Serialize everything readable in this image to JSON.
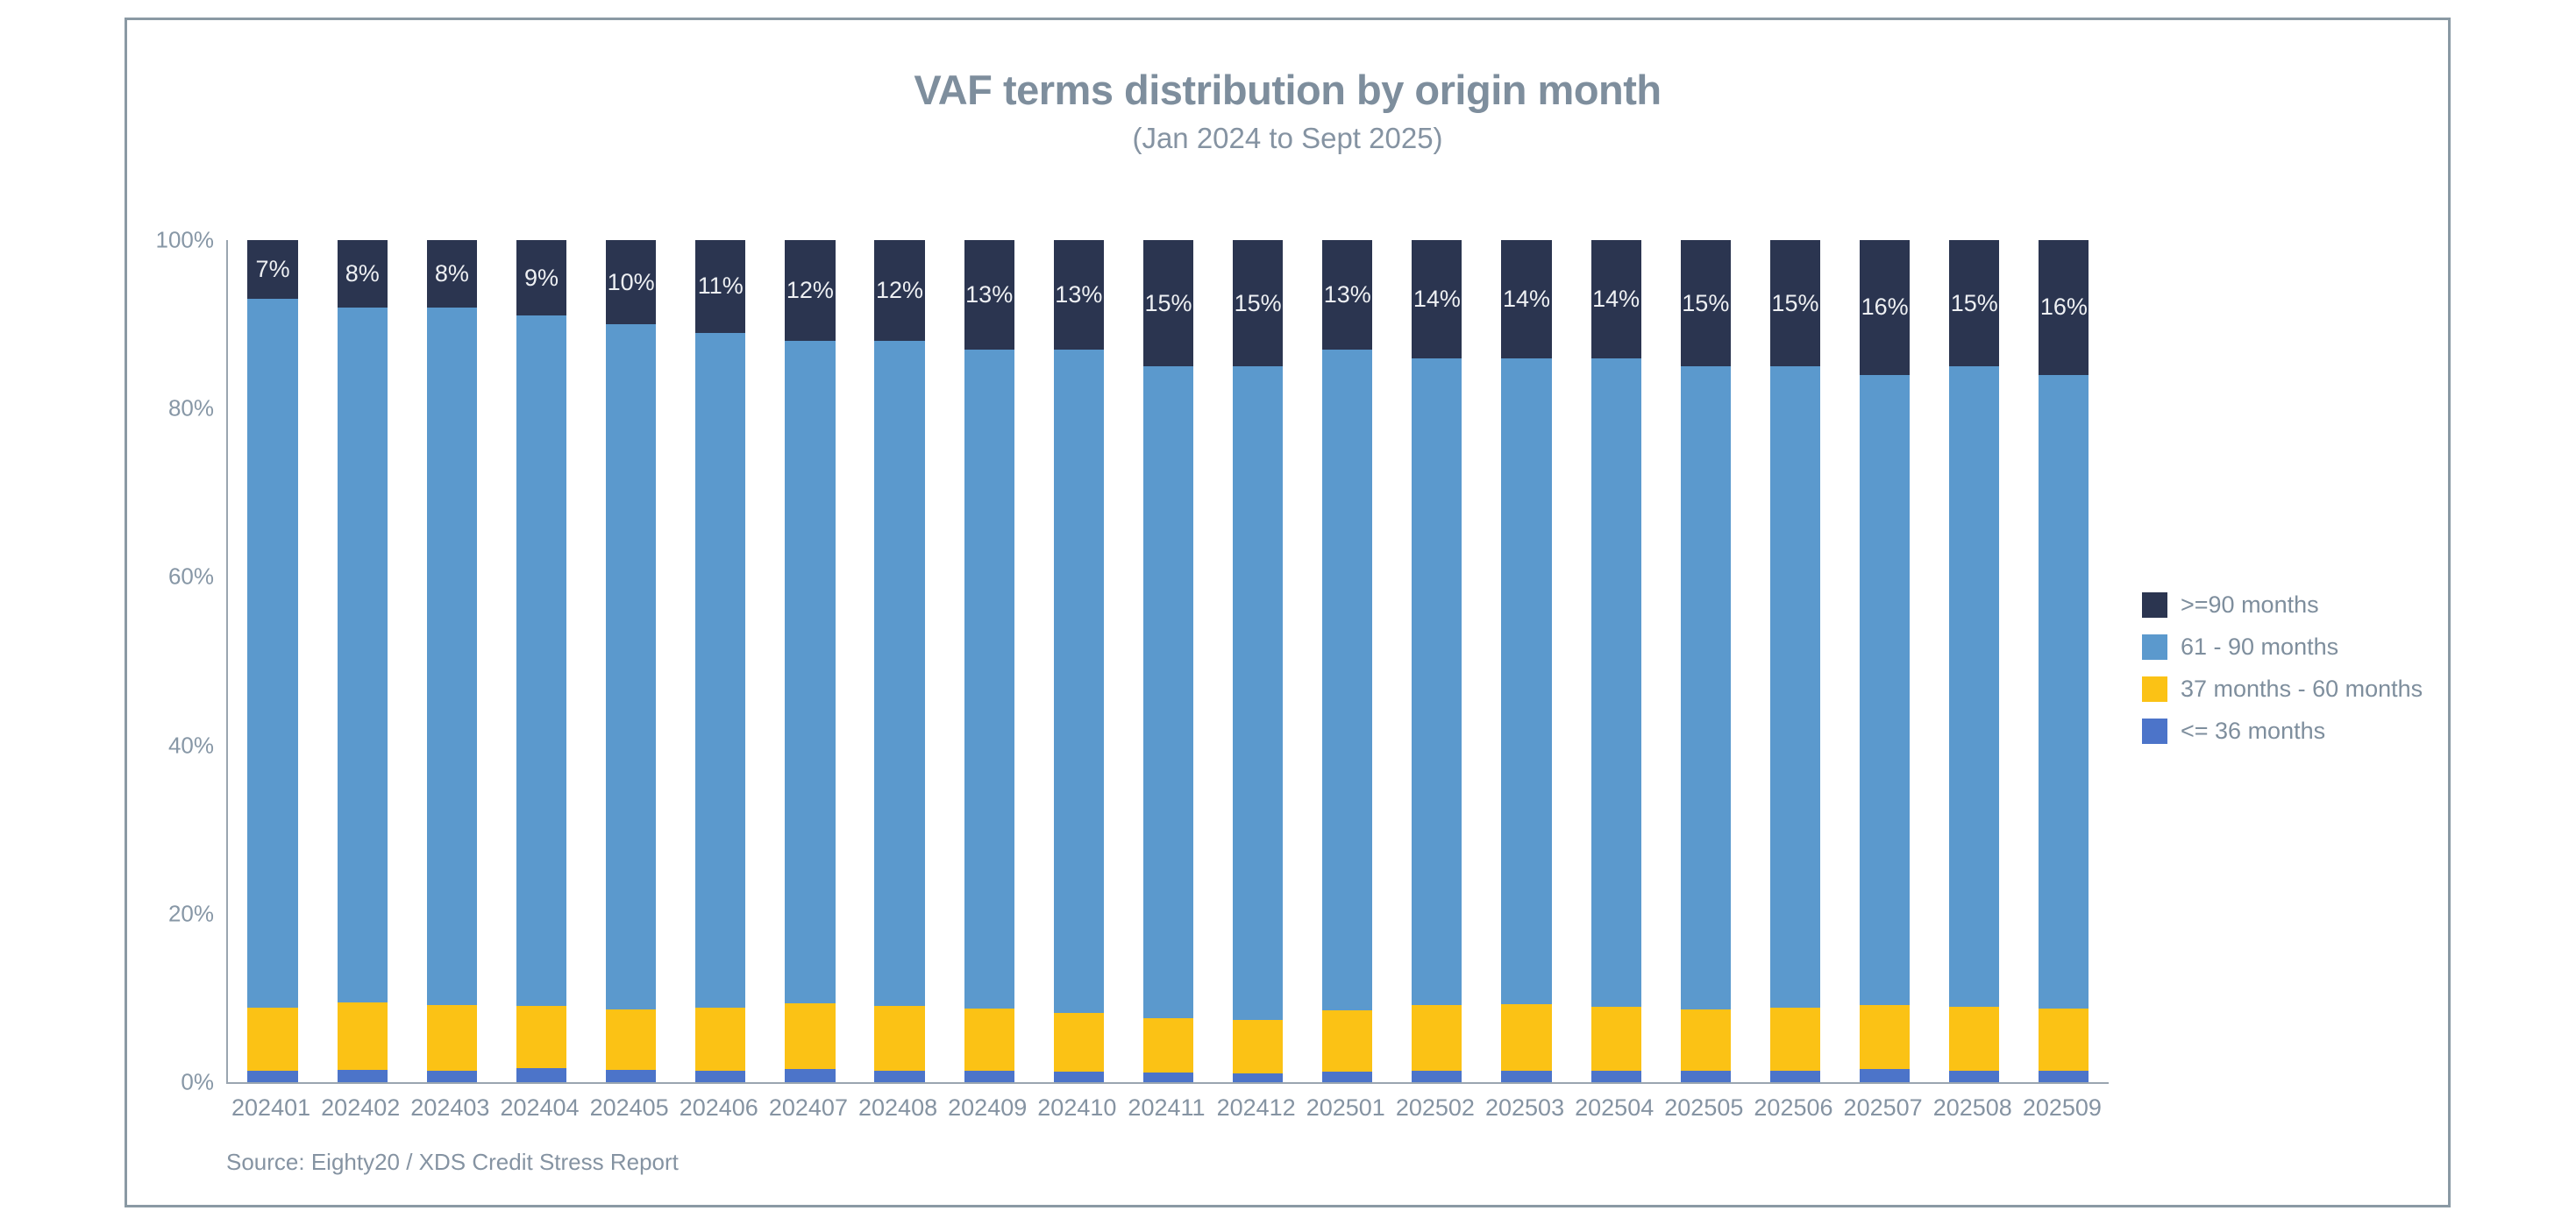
{
  "title": "VAF terms distribution by origin month",
  "subtitle": "(Jan 2024 to Sept 2025)",
  "source": "Source: Eighty20 / XDS Credit Stress Report",
  "colors": {
    "ge90": "#2B3550",
    "m61_90": "#5B99CD",
    "m37_60": "#FBC215",
    "le36": "#4C74C9",
    "title_text": "#7E8E9D",
    "axis_text": "#8797A6",
    "axis_line": "#9AA5B0",
    "frame_border": "#8A99A4",
    "data_label_text": "#EEF0F3"
  },
  "legend": [
    {
      "label": ">=90 months",
      "color": "#2B3550"
    },
    {
      "label": "61 - 90 months",
      "color": "#5B99CD"
    },
    {
      "label": "37 months - 60 months",
      "color": "#FBC215"
    },
    {
      "label": "<= 36 months",
      "color": "#4C74C9"
    }
  ],
  "chart_data": {
    "type": "bar",
    "stacked": true,
    "percent_stacked": true,
    "title": "VAF terms distribution by origin month",
    "subtitle": "(Jan 2024 to Sept 2025)",
    "xlabel": "",
    "ylabel": "",
    "ylim": [
      0,
      100
    ],
    "grid": false,
    "legend_position": "right",
    "y_ticks": [
      {
        "label": "100%",
        "value": 100
      },
      {
        "label": "80%",
        "value": 80
      },
      {
        "label": "60%",
        "value": 60
      },
      {
        "label": "40%",
        "value": 40
      },
      {
        "label": "20%",
        "value": 20
      },
      {
        "label": "0%",
        "value": 0
      }
    ],
    "categories": [
      "202401",
      "202402",
      "202403",
      "202404",
      "202405",
      "202406",
      "202407",
      "202408",
      "202409",
      "202410",
      "202411",
      "202412",
      "202501",
      "202502",
      "202503",
      "202504",
      "202505",
      "202506",
      "202507",
      "202508",
      "202509"
    ],
    "series": [
      {
        "key": "le36",
        "name": "<= 36 months",
        "color": "#4C74C9",
        "values": [
          1.3,
          1.5,
          1.4,
          1.7,
          1.5,
          1.4,
          1.6,
          1.4,
          1.3,
          1.2,
          1.1,
          1.0,
          1.2,
          1.4,
          1.4,
          1.3,
          1.4,
          1.3,
          1.6,
          1.4,
          1.3
        ]
      },
      {
        "key": "m37_60",
        "name": "37 months - 60 months",
        "color": "#FBC215",
        "values": [
          7.5,
          8.0,
          7.8,
          7.4,
          7.1,
          7.4,
          7.8,
          7.7,
          7.4,
          7.0,
          6.5,
          6.4,
          7.3,
          7.8,
          7.9,
          7.7,
          7.2,
          7.5,
          7.6,
          7.5,
          7.4
        ]
      },
      {
        "key": "m61_90",
        "name": "61 - 90 months",
        "color": "#5B99CD",
        "values": [
          84.2,
          82.5,
          82.8,
          81.9,
          81.4,
          80.2,
          78.6,
          78.9,
          78.3,
          78.8,
          77.4,
          77.6,
          78.5,
          76.8,
          76.7,
          77.0,
          76.4,
          76.2,
          74.8,
          76.1,
          75.3
        ]
      },
      {
        "key": "ge90",
        "name": ">=90 months",
        "color": "#2B3550",
        "values": [
          7,
          8,
          8,
          9,
          10,
          11,
          12,
          12,
          13,
          13,
          15,
          15,
          13,
          14,
          14,
          14,
          15,
          15,
          16,
          15,
          16
        ],
        "labels": [
          "7%",
          "8%",
          "8%",
          "9%",
          "10%",
          "11%",
          "12%",
          "12%",
          "13%",
          "13%",
          "15%",
          "15%",
          "13%",
          "14%",
          "14%",
          "14%",
          "15%",
          "15%",
          "16%",
          "15%",
          "16%"
        ]
      }
    ]
  }
}
